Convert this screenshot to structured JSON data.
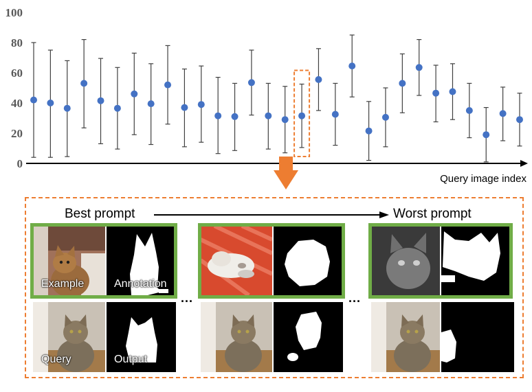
{
  "chart_data": {
    "type": "scatter",
    "ylim": [
      0,
      100
    ],
    "yticks": [
      "0",
      "20",
      "40",
      "60",
      "80",
      "100"
    ],
    "xlabel": "Query image index",
    "grid": false,
    "highlight_index": 16,
    "points": [
      {
        "y": 42,
        "low": 4,
        "high": 80
      },
      {
        "y": 40,
        "low": 4,
        "high": 75
      },
      {
        "y": 36.5,
        "low": 4.5,
        "high": 68
      },
      {
        "y": 53,
        "low": 23.5,
        "high": 82
      },
      {
        "y": 41.5,
        "low": 13,
        "high": 69.5
      },
      {
        "y": 36.5,
        "low": 9.5,
        "high": 63.5
      },
      {
        "y": 46,
        "low": 19,
        "high": 73
      },
      {
        "y": 39.5,
        "low": 12.5,
        "high": 66
      },
      {
        "y": 52,
        "low": 26,
        "high": 78
      },
      {
        "y": 37,
        "low": 11,
        "high": 62.5
      },
      {
        "y": 39,
        "low": 14,
        "high": 64.5
      },
      {
        "y": 31.5,
        "low": 6.5,
        "high": 57
      },
      {
        "y": 31,
        "low": 8.5,
        "high": 53
      },
      {
        "y": 53.5,
        "low": 32,
        "high": 75
      },
      {
        "y": 31.5,
        "low": 9.5,
        "high": 53
      },
      {
        "y": 29,
        "low": 7,
        "high": 51
      },
      {
        "y": 31.5,
        "low": 10.5,
        "high": 52.5
      },
      {
        "y": 55.5,
        "low": 35,
        "high": 76
      },
      {
        "y": 32.5,
        "low": 12,
        "high": 53
      },
      {
        "y": 64.5,
        "low": 44,
        "high": 85
      },
      {
        "y": 21.5,
        "low": 2,
        "high": 41
      },
      {
        "y": 30.5,
        "low": 11,
        "high": 50
      },
      {
        "y": 53,
        "low": 33.5,
        "high": 72.5
      },
      {
        "y": 63.5,
        "low": 45,
        "high": 82
      },
      {
        "y": 46.5,
        "low": 27.5,
        "high": 65
      },
      {
        "y": 47.5,
        "low": 29,
        "high": 66
      },
      {
        "y": 35,
        "low": 17,
        "high": 53
      },
      {
        "y": 19,
        "low": 1,
        "high": 37
      },
      {
        "y": 33,
        "low": 15,
        "high": 50.5
      },
      {
        "y": 29,
        "low": 11.5,
        "high": 46.5
      }
    ],
    "colors": {
      "marker": "#4472c4",
      "errorbar": "#404040",
      "highlight": "#ed7d31"
    }
  },
  "panel": {
    "best_label": "Best prompt",
    "worst_label": "Worst prompt",
    "ellipsis": "...",
    "captions": {
      "example": "Example",
      "annotation": "Annotation",
      "query": "Query",
      "output": "Output"
    },
    "frame_color": "#70ad47",
    "border_color": "#ed7d31"
  }
}
